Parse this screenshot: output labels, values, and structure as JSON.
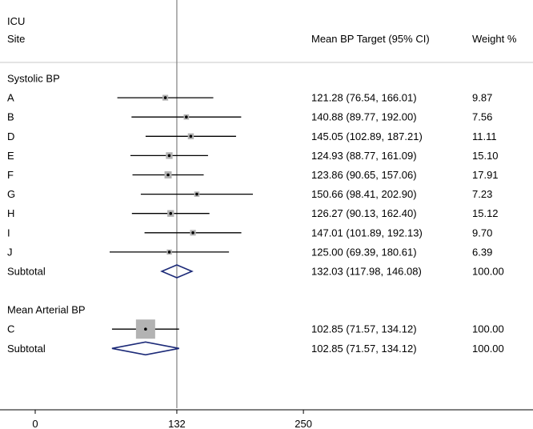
{
  "chart_data": {
    "type": "forest",
    "header": {
      "group_label": "ICU",
      "site_label": "Site",
      "estimate_label": "Mean BP Target (95% CI)",
      "weight_label": "Weight %"
    },
    "reference_line": 132,
    "x_ticks": [
      0,
      132,
      250
    ],
    "groups": [
      {
        "label": "Systolic BP",
        "studies": [
          {
            "site": "A",
            "mean": 121.28,
            "lo": 76.54,
            "hi": 166.01,
            "weight": 9.87,
            "text": "121.28 (76.54, 166.01)",
            "weight_text": "9.87"
          },
          {
            "site": "B",
            "mean": 140.88,
            "lo": 89.77,
            "hi": 192.0,
            "weight": 7.56,
            "text": "140.88 (89.77, 192.00)",
            "weight_text": "7.56"
          },
          {
            "site": "D",
            "mean": 145.05,
            "lo": 102.89,
            "hi": 187.21,
            "weight": 11.11,
            "text": "145.05 (102.89, 187.21)",
            "weight_text": "11.11"
          },
          {
            "site": "E",
            "mean": 124.93,
            "lo": 88.77,
            "hi": 161.09,
            "weight": 15.1,
            "text": "124.93 (88.77, 161.09)",
            "weight_text": "15.10"
          },
          {
            "site": "F",
            "mean": 123.86,
            "lo": 90.65,
            "hi": 157.06,
            "weight": 17.91,
            "text": "123.86 (90.65, 157.06)",
            "weight_text": "17.91"
          },
          {
            "site": "G",
            "mean": 150.66,
            "lo": 98.41,
            "hi": 202.9,
            "weight": 7.23,
            "text": "150.66 (98.41, 202.90)",
            "weight_text": "7.23"
          },
          {
            "site": "H",
            "mean": 126.27,
            "lo": 90.13,
            "hi": 162.4,
            "weight": 15.12,
            "text": "126.27 (90.13, 162.40)",
            "weight_text": "15.12"
          },
          {
            "site": "I",
            "mean": 147.01,
            "lo": 101.89,
            "hi": 192.13,
            "weight": 9.7,
            "text": "147.01 (101.89, 192.13)",
            "weight_text": "9.70"
          },
          {
            "site": "J",
            "mean": 125.0,
            "lo": 69.39,
            "hi": 180.61,
            "weight": 6.39,
            "text": "125.00 (69.39, 180.61)",
            "weight_text": "6.39"
          }
        ],
        "subtotal": {
          "label": "Subtotal",
          "mean": 132.03,
          "lo": 117.98,
          "hi": 146.08,
          "text": "132.03 (117.98, 146.08)",
          "weight_text": "100.00"
        }
      },
      {
        "label": "Mean Arterial BP",
        "studies": [
          {
            "site": "C",
            "mean": 102.85,
            "lo": 71.57,
            "hi": 134.12,
            "weight": 100.0,
            "text": "102.85 (71.57, 134.12)",
            "weight_text": "100.00"
          }
        ],
        "subtotal": {
          "label": "Subtotal",
          "mean": 102.85,
          "lo": 71.57,
          "hi": 134.12,
          "text": "102.85 (71.57, 134.12)",
          "weight_text": "100.00"
        }
      }
    ],
    "colors": {
      "square": "#b3b3b3",
      "diamond": "#1c2a78",
      "line": "#000000",
      "reference": "#808080",
      "divider": "#c8c8c8"
    }
  }
}
